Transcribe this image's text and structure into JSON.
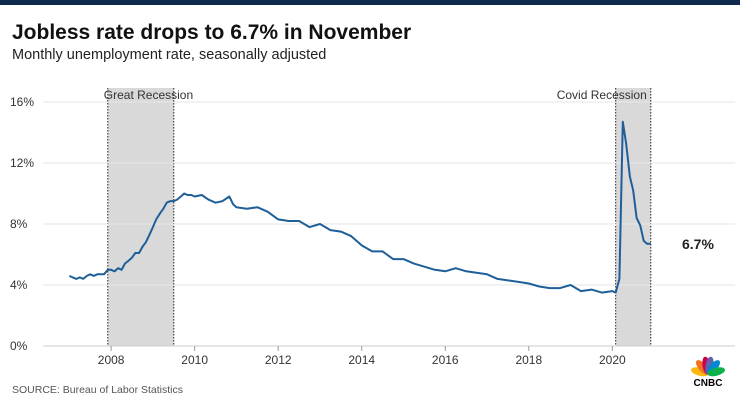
{
  "header": {
    "title": "Jobless rate drops to 6.7% in November",
    "subtitle": "Monthly unemployment rate, seasonally adjusted"
  },
  "footer": {
    "source": "SOURCE: Bureau of Labor Statistics"
  },
  "branding": {
    "logo_text": "CNBC",
    "logo_colors": [
      "#fcb711",
      "#f37021",
      "#cc004c",
      "#6460aa",
      "#0089d0",
      "#0db14b"
    ]
  },
  "colors": {
    "line": "#1f5f99",
    "recession_shade": "#d9d9d9",
    "grid": "#e6e6e6",
    "axis_text": "#333333",
    "header_bar": "#0f2a4f"
  },
  "chart_data": {
    "type": "line",
    "title": "Jobless rate drops to 6.7% in November",
    "subtitle": "Monthly unemployment rate, seasonally adjusted",
    "xlabel": "",
    "ylabel": "",
    "xlim": [
      2006.8,
      2021.5
    ],
    "ylim": [
      0,
      16
    ],
    "y_ticks": [
      0,
      4,
      8,
      12,
      16
    ],
    "y_tick_labels": [
      "0%",
      "4%",
      "8%",
      "12%",
      "16%"
    ],
    "x_ticks": [
      2008,
      2010,
      2012,
      2014,
      2016,
      2018,
      2020
    ],
    "x_tick_labels": [
      "2008",
      "2010",
      "2012",
      "2014",
      "2016",
      "2018",
      "2020"
    ],
    "grid": true,
    "end_label": "6.7%",
    "recessions": [
      {
        "label": "Great Recession",
        "start": 2007.92,
        "end": 2009.5
      },
      {
        "label": "Covid Recession",
        "start": 2020.08,
        "end": 2020.92
      }
    ],
    "series": [
      {
        "x": [
          2007.0,
          2007.08,
          2007.17,
          2007.25,
          2007.33,
          2007.42,
          2007.5,
          2007.58,
          2007.67,
          2007.75,
          2007.83,
          2007.92,
          2008.0,
          2008.08,
          2008.17,
          2008.25,
          2008.33,
          2008.42,
          2008.5,
          2008.58,
          2008.67,
          2008.75,
          2008.83,
          2008.92,
          2009.0,
          2009.08,
          2009.17,
          2009.25,
          2009.33,
          2009.42,
          2009.5,
          2009.58,
          2009.67,
          2009.75,
          2009.83,
          2009.92,
          2010.0,
          2010.17,
          2010.33,
          2010.5,
          2010.67,
          2010.83,
          2010.92,
          2011.0,
          2011.25,
          2011.5,
          2011.75,
          2012.0,
          2012.25,
          2012.5,
          2012.75,
          2013.0,
          2013.25,
          2013.5,
          2013.75,
          2014.0,
          2014.25,
          2014.5,
          2014.75,
          2015.0,
          2015.25,
          2015.5,
          2015.75,
          2016.0,
          2016.25,
          2016.5,
          2016.75,
          2017.0,
          2017.25,
          2017.5,
          2017.75,
          2018.0,
          2018.25,
          2018.5,
          2018.75,
          2019.0,
          2019.25,
          2019.5,
          2019.75,
          2020.0,
          2020.08,
          2020.17,
          2020.25,
          2020.33,
          2020.42,
          2020.5,
          2020.58,
          2020.67,
          2020.75,
          2020.83,
          2020.92
        ],
        "values": [
          4.6,
          4.5,
          4.4,
          4.5,
          4.4,
          4.6,
          4.7,
          4.6,
          4.7,
          4.7,
          4.7,
          5.0,
          5.0,
          4.9,
          5.1,
          5.0,
          5.4,
          5.6,
          5.8,
          6.1,
          6.1,
          6.5,
          6.8,
          7.3,
          7.8,
          8.3,
          8.7,
          9.0,
          9.4,
          9.5,
          9.5,
          9.6,
          9.8,
          10.0,
          9.9,
          9.9,
          9.8,
          9.9,
          9.6,
          9.4,
          9.5,
          9.8,
          9.3,
          9.1,
          9.0,
          9.1,
          8.8,
          8.3,
          8.2,
          8.2,
          7.8,
          8.0,
          7.6,
          7.5,
          7.2,
          6.6,
          6.2,
          6.2,
          5.7,
          5.7,
          5.4,
          5.2,
          5.0,
          4.9,
          5.1,
          4.9,
          4.8,
          4.7,
          4.4,
          4.3,
          4.2,
          4.1,
          3.9,
          3.8,
          3.8,
          4.0,
          3.6,
          3.7,
          3.5,
          3.6,
          3.5,
          4.4,
          14.7,
          13.3,
          11.1,
          10.2,
          8.4,
          7.9,
          6.9,
          6.7,
          6.7
        ]
      }
    ]
  }
}
